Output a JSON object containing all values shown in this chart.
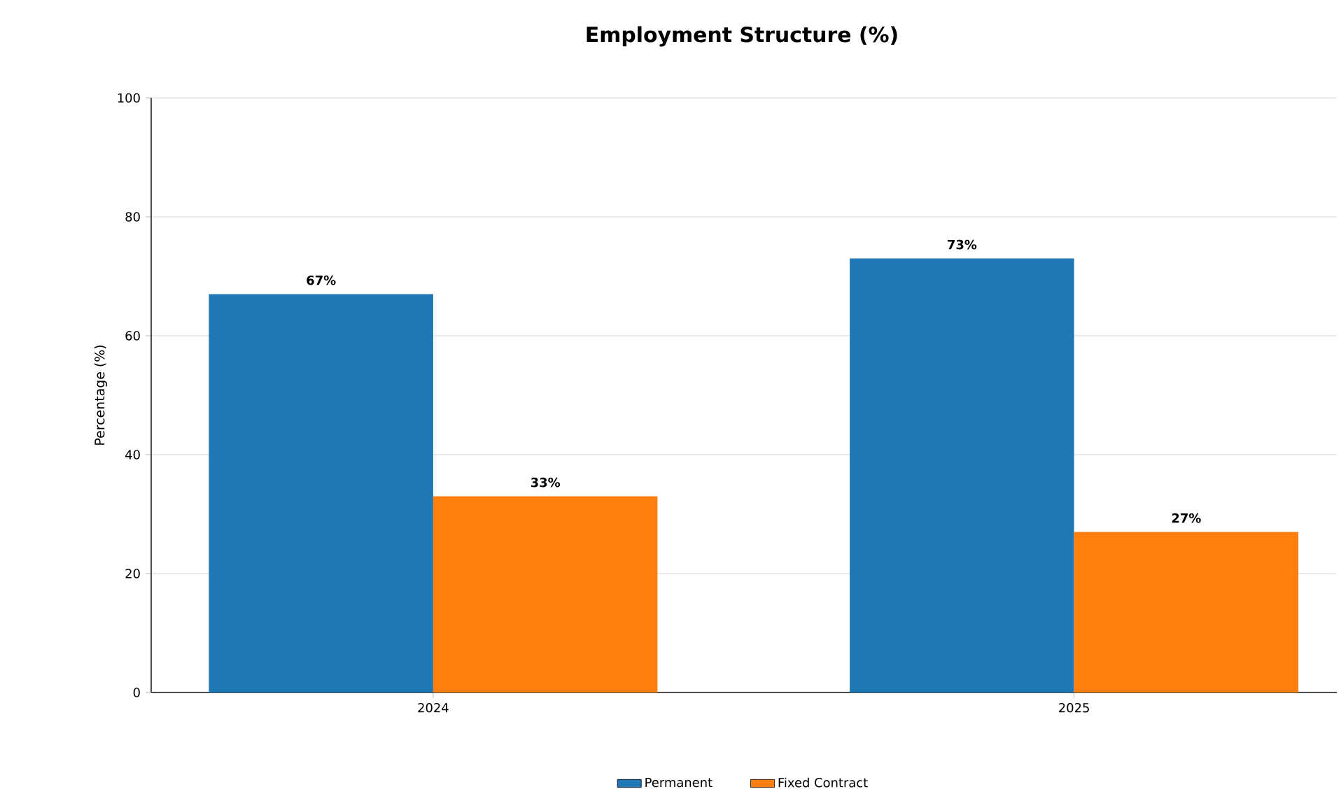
{
  "chart_data": {
    "type": "bar",
    "title": "Employment Structure (%)",
    "ylabel": "Percentage (%)",
    "categories": [
      "2024",
      "2025"
    ],
    "series": [
      {
        "name": "Permanent",
        "color": "#1f77b4",
        "values": [
          67,
          73
        ],
        "value_labels": [
          "67%",
          "73%"
        ]
      },
      {
        "name": "Fixed Contract",
        "color": "#ff7f0e",
        "values": [
          33,
          27
        ],
        "value_labels": [
          "33%",
          "27%"
        ]
      }
    ],
    "ylim": [
      0,
      100
    ],
    "yticks": [
      0,
      20,
      40,
      60,
      80,
      100
    ],
    "grid": "y",
    "legend": "bottom"
  }
}
